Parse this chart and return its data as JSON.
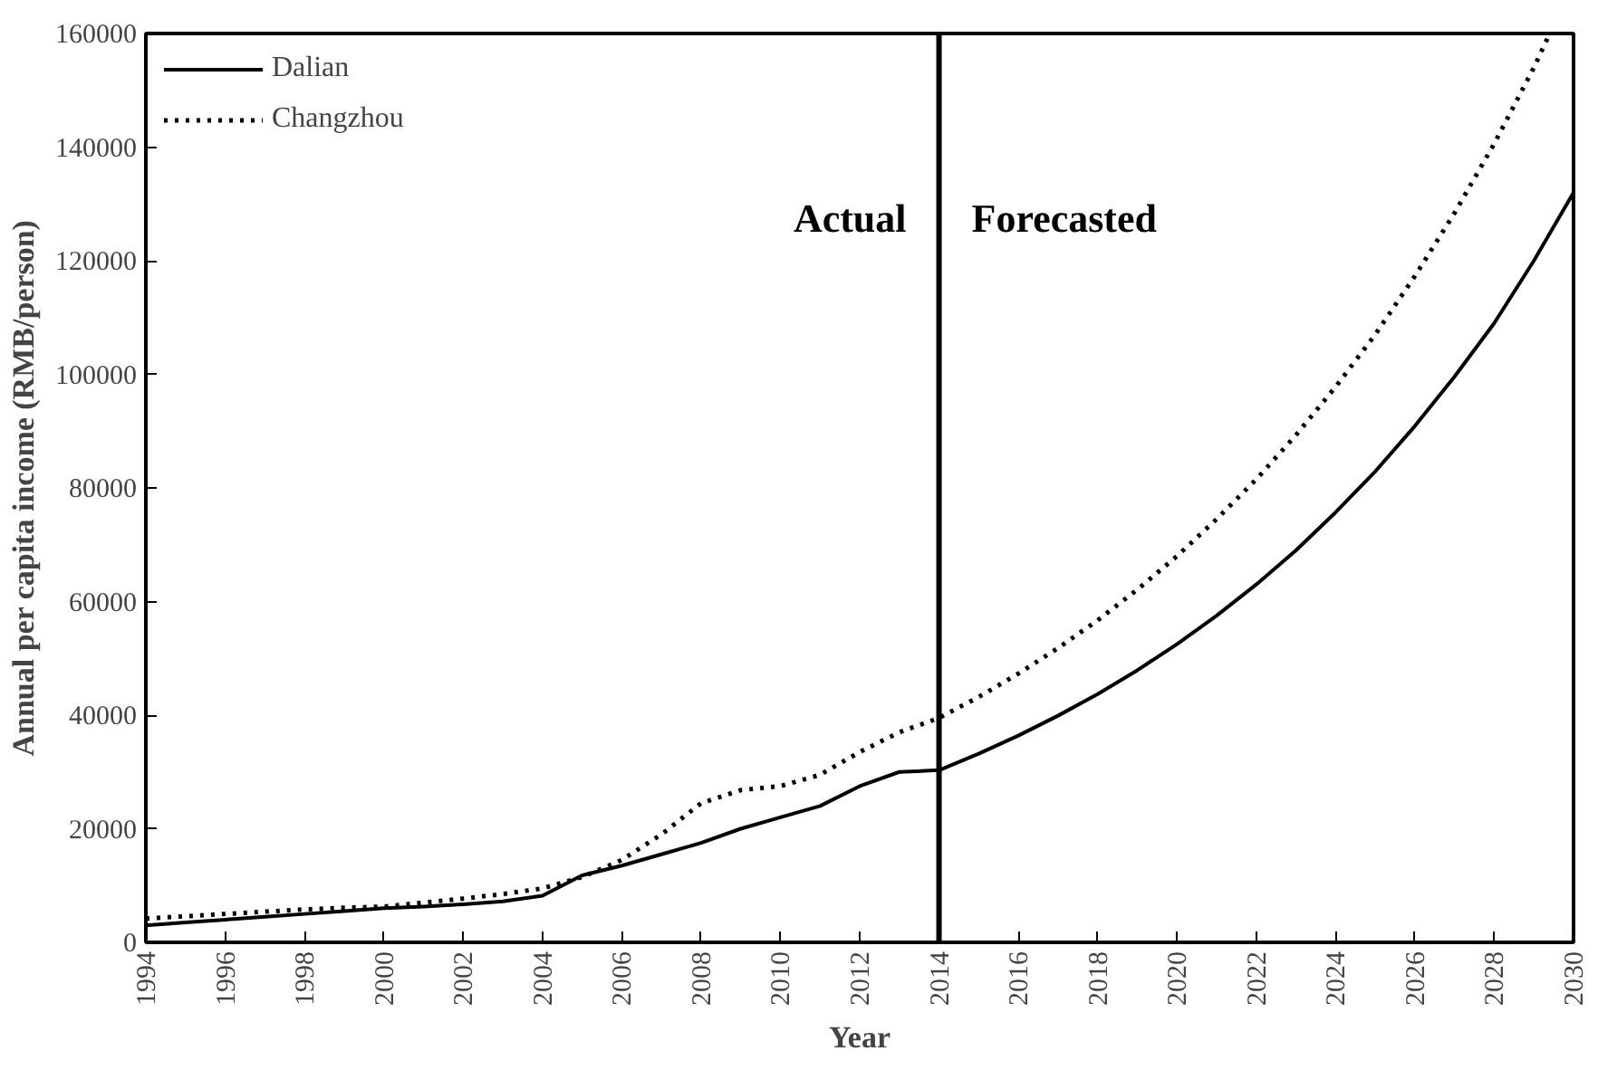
{
  "chart_data": {
    "type": "line",
    "xlabel": "Year",
    "ylabel": "Annual per capita income (RMB/person)",
    "xlim": [
      1994,
      2030
    ],
    "xticks": [
      1994,
      1996,
      1998,
      2000,
      2002,
      2004,
      2006,
      2008,
      2010,
      2012,
      2014,
      2016,
      2018,
      2020,
      2022,
      2024,
      2026,
      2028,
      2030
    ],
    "ylim": [
      0,
      160000
    ],
    "yticks": [
      0,
      20000,
      40000,
      60000,
      80000,
      100000,
      120000,
      140000,
      160000
    ],
    "grid": false,
    "legend": "top left",
    "marker": "none",
    "series": [
      {
        "name": "Dalian",
        "color": "#000000",
        "line_style": "solid",
        "x": [
          1994,
          1995,
          1996,
          1997,
          1998,
          1999,
          2000,
          2001,
          2002,
          2003,
          2004,
          2005,
          2006,
          2007,
          2008,
          2009,
          2010,
          2011,
          2012,
          2013,
          2014,
          2015,
          2016,
          2017,
          2018,
          2019,
          2020,
          2021,
          2022,
          2023,
          2024,
          2025,
          2026,
          2027,
          2028,
          2029,
          2030
        ],
        "values": [
          3000,
          3500,
          4000,
          4500,
          5000,
          5500,
          6000,
          6300,
          6700,
          7200,
          8200,
          11800,
          13500,
          15500,
          17500,
          20000,
          22000,
          24000,
          27500,
          30000,
          30300,
          33200,
          36400,
          39900,
          43700,
          47900,
          52500,
          57500,
          63000,
          69000,
          75700,
          82900,
          90900,
          99600,
          109000,
          120000,
          132000
        ]
      },
      {
        "name": "Changzhou",
        "color": "#000000",
        "line_style": "dotted",
        "x": [
          1994,
          1995,
          1996,
          1997,
          1998,
          1999,
          2000,
          2001,
          2002,
          2003,
          2004,
          2005,
          2006,
          2007,
          2008,
          2009,
          2010,
          2011,
          2012,
          2013,
          2014,
          2015,
          2016,
          2017,
          2018,
          2019,
          2020,
          2021,
          2022,
          2023,
          2024,
          2025,
          2026,
          2027,
          2028,
          2029,
          2029.4
        ],
        "values": [
          4200,
          4600,
          5000,
          5400,
          5800,
          6100,
          6300,
          7000,
          7700,
          8500,
          9500,
          11500,
          14500,
          19000,
          24500,
          26800,
          27500,
          29500,
          33500,
          37000,
          39500,
          43200,
          47300,
          51800,
          56700,
          62100,
          68000,
          74500,
          81500,
          89300,
          97800,
          107000,
          117300,
          128400,
          140600,
          154000,
          160000
        ]
      }
    ],
    "ref_lines": [
      {
        "axis": "x",
        "value": 2014,
        "color": "#000000",
        "line_style": "solid"
      }
    ],
    "annotations": [
      "Actual",
      "Forecasted"
    ]
  }
}
